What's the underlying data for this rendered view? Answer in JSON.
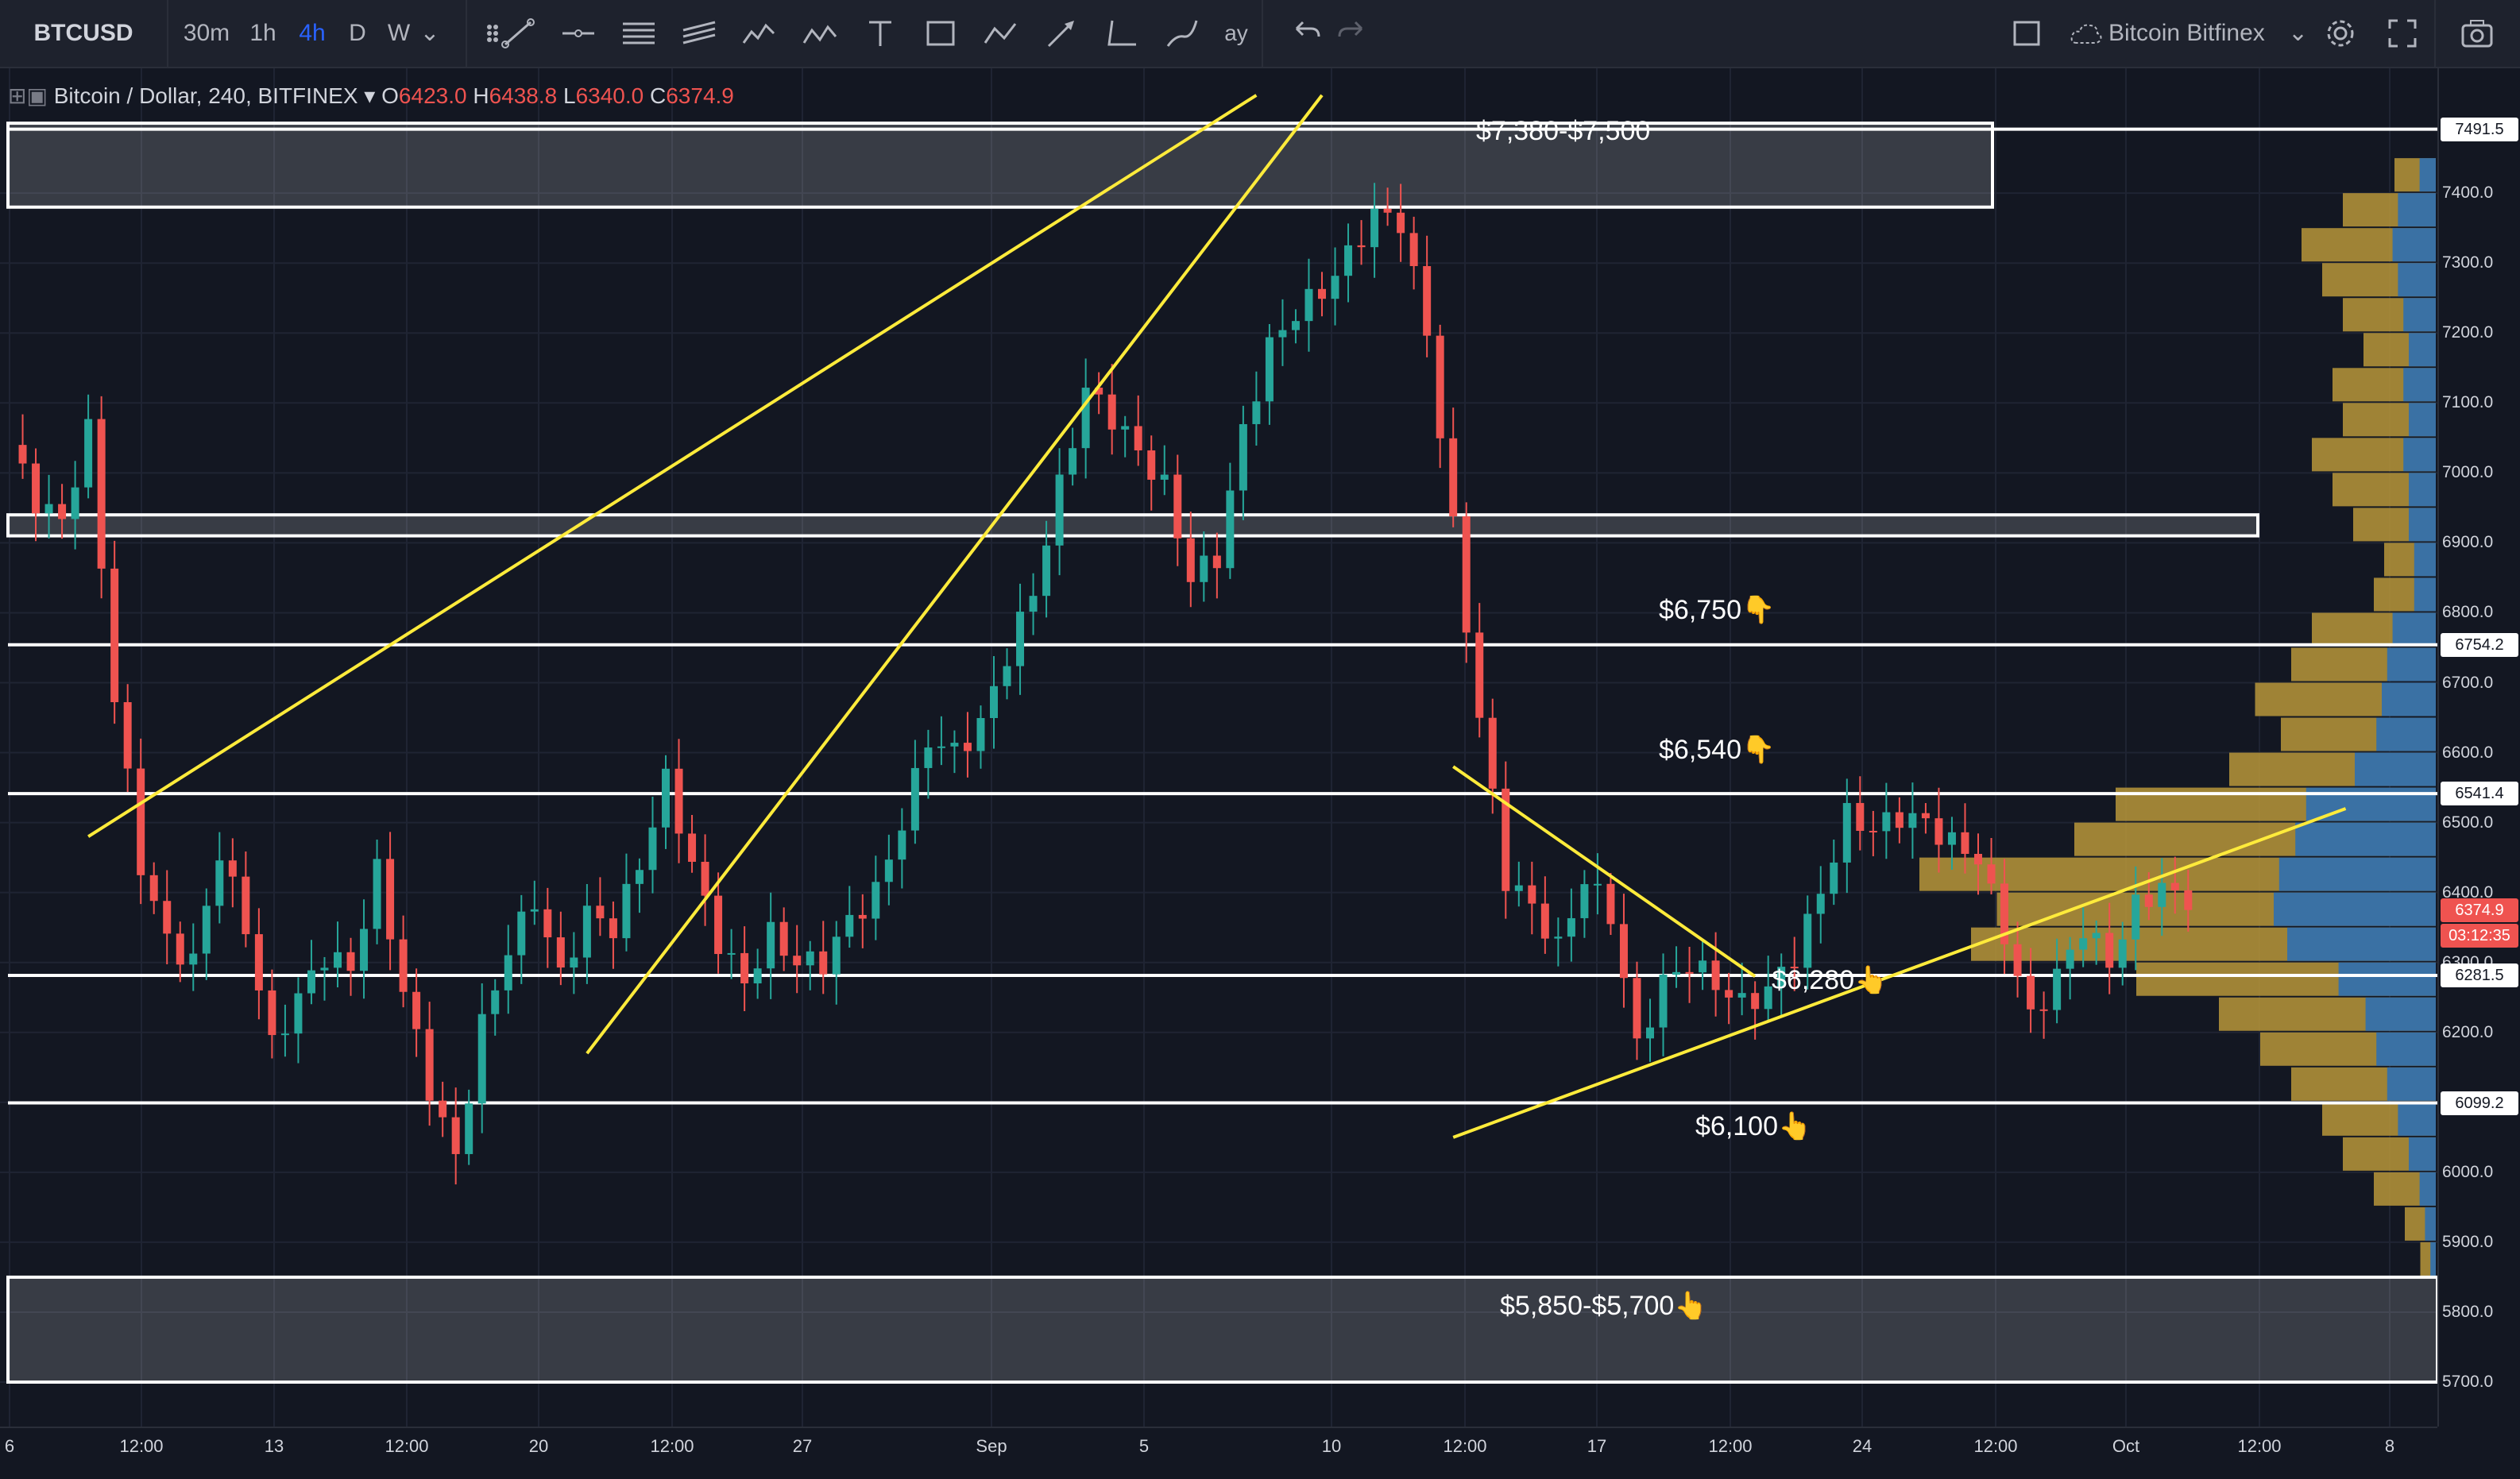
{
  "toolbar": {
    "symbol": "BTCUSD",
    "intervals": [
      "30m",
      "1h",
      "4h",
      "D",
      "W"
    ],
    "active_interval": "4h",
    "exchange": "Bitcoin Bitfinex",
    "partial_label": "ay",
    "icons": [
      "grid-handle-icon",
      "trend-line-icon",
      "horizontal-ray-icon",
      "parallel-channel-icon",
      "pitchfork-icon",
      "elliott-wave-icon",
      "abcde-pattern-icon",
      "text-icon",
      "rectangle-icon",
      "abc-pattern-icon",
      "arrow-icon",
      "angle-icon",
      "brush-icon",
      "undo-icon",
      "redo-icon",
      "square-icon",
      "cloud-icon",
      "chevron-down-icon",
      "gear-icon",
      "fullscreen-icon",
      "camera-icon"
    ]
  },
  "legend": {
    "title": "Bitcoin / Dollar, 240, BITFINEX",
    "o_label": "O",
    "o_value": "6423.0",
    "h_label": "H",
    "h_value": "6438.8",
    "l_label": "L",
    "l_value": "6340.0",
    "c_label": "C",
    "c_value": "6374.9"
  },
  "chart_data": {
    "type": "candlestick",
    "symbol": "Bitcoin / Dollar",
    "interval": "240",
    "exchange": "BITFINEX",
    "y_axis_ticks": [
      5700,
      5800,
      5900,
      6000,
      6100,
      6200,
      6300,
      6400,
      6500,
      6600,
      6700,
      6800,
      6900,
      7000,
      7100,
      7200,
      7300,
      7400
    ],
    "y_tick_labels": [
      "5700.0",
      "5800.0",
      "5900.0",
      "6000.0",
      "6100.0",
      "6200.0",
      "6300.0",
      "6400.0",
      "6500.0",
      "6600.0",
      "6700.0",
      "6800.0",
      "6900.0",
      "7000.0",
      "7100.0",
      "7200.0",
      "7300.0",
      "7400.0"
    ],
    "ylim": [
      5650,
      7540
    ],
    "x_tick_labels": [
      "6",
      "12:00",
      "13",
      "12:00",
      "20",
      "12:00",
      "27",
      "Sep",
      "5",
      "10",
      "12:00",
      "17",
      "12:00",
      "24",
      "12:00",
      "Oct",
      "12:00",
      "8"
    ],
    "grid": true,
    "last_price": "6374.9",
    "countdown": "03:12:35",
    "level_badges": [
      "7491.5",
      "6754.2",
      "6541.4",
      "6281.5",
      "6099.2"
    ],
    "close_path": [
      [
        0,
        7040
      ],
      [
        2,
        6960
      ],
      [
        4,
        6930
      ],
      [
        6,
        7060
      ],
      [
        8,
        6680
      ],
      [
        10,
        6440
      ],
      [
        12,
        6330
      ],
      [
        14,
        6300
      ],
      [
        16,
        6460
      ],
      [
        18,
        6350
      ],
      [
        20,
        6180
      ],
      [
        22,
        6250
      ],
      [
        24,
        6310
      ],
      [
        26,
        6290
      ],
      [
        28,
        6430
      ],
      [
        30,
        6260
      ],
      [
        32,
        6120
      ],
      [
        34,
        6020
      ],
      [
        36,
        6210
      ],
      [
        38,
        6320
      ],
      [
        40,
        6390
      ],
      [
        42,
        6280
      ],
      [
        44,
        6370
      ],
      [
        46,
        6350
      ],
      [
        48,
        6440
      ],
      [
        50,
        6560
      ],
      [
        52,
        6440
      ],
      [
        54,
        6330
      ],
      [
        56,
        6270
      ],
      [
        58,
        6340
      ],
      [
        60,
        6300
      ],
      [
        62,
        6300
      ],
      [
        64,
        6360
      ],
      [
        66,
        6400
      ],
      [
        68,
        6500
      ],
      [
        70,
        6620
      ],
      [
        72,
        6600
      ],
      [
        74,
        6640
      ],
      [
        76,
        6740
      ],
      [
        78,
        6830
      ],
      [
        80,
        6980
      ],
      [
        82,
        7120
      ],
      [
        84,
        7080
      ],
      [
        86,
        7030
      ],
      [
        88,
        6980
      ],
      [
        90,
        6850
      ],
      [
        92,
        6880
      ],
      [
        94,
        7060
      ],
      [
        96,
        7180
      ],
      [
        98,
        7230
      ],
      [
        100,
        7260
      ],
      [
        102,
        7310
      ],
      [
        104,
        7370
      ],
      [
        106,
        7360
      ],
      [
        108,
        7200
      ],
      [
        110,
        6920
      ],
      [
        112,
        6650
      ],
      [
        114,
        6420
      ],
      [
        116,
        6380
      ],
      [
        118,
        6320
      ],
      [
        120,
        6420
      ],
      [
        122,
        6370
      ],
      [
        124,
        6180
      ],
      [
        126,
        6270
      ],
      [
        128,
        6300
      ],
      [
        130,
        6270
      ],
      [
        132,
        6240
      ],
      [
        134,
        6260
      ],
      [
        136,
        6310
      ],
      [
        138,
        6400
      ],
      [
        140,
        6510
      ],
      [
        142,
        6490
      ],
      [
        144,
        6510
      ],
      [
        146,
        6500
      ],
      [
        148,
        6470
      ],
      [
        150,
        6450
      ],
      [
        152,
        6340
      ],
      [
        154,
        6220
      ],
      [
        156,
        6280
      ],
      [
        158,
        6350
      ],
      [
        160,
        6300
      ],
      [
        162,
        6380
      ],
      [
        164,
        6410
      ],
      [
        166,
        6375
      ]
    ],
    "volume_profile_bins_low_to_high_usd": [
      5850,
      5900,
      5950,
      6000,
      6050,
      6100,
      6150,
      6200,
      6250,
      6300,
      6350,
      6400,
      6450,
      6500,
      6550,
      6600,
      6650,
      6700,
      6750,
      6800,
      6850,
      6900,
      6950,
      7000,
      7050,
      7100,
      7150,
      7200,
      7250,
      7300,
      7350,
      7400
    ],
    "volume_profile_gold": [
      3,
      6,
      12,
      18,
      22,
      28,
      34,
      42,
      58,
      90,
      85,
      100,
      70,
      62,
      40,
      30,
      35,
      28,
      24,
      12,
      10,
      16,
      20,
      24,
      18,
      20,
      14,
      18,
      22,
      26,
      18,
      8
    ],
    "volume_profile_blue": [
      2,
      4,
      6,
      10,
      14,
      18,
      22,
      26,
      36,
      55,
      60,
      58,
      52,
      48,
      30,
      22,
      20,
      18,
      16,
      8,
      8,
      10,
      10,
      12,
      10,
      12,
      10,
      12,
      14,
      16,
      14,
      6
    ],
    "zones": [
      {
        "low": 7380,
        "high": 7500,
        "label": "$7,380-$7,500"
      },
      {
        "low": 6910,
        "high": 6940,
        "label": ""
      },
      {
        "low": 5700,
        "high": 5850,
        "label": "$5,850-$5,700👆"
      }
    ],
    "levels": [
      {
        "price": 7491.5
      },
      {
        "price": 6754.2,
        "label": "$6,750👇"
      },
      {
        "price": 6541.4,
        "label": "$6,540👇"
      },
      {
        "price": 6281.5,
        "label": "$6,280👆"
      },
      {
        "price": 6099.2,
        "label": "$6,100👆"
      }
    ],
    "trendlines_price": [
      {
        "from": [
          6,
          6480
        ],
        "to": [
          95,
          7540
        ]
      },
      {
        "from": [
          44,
          6170
        ],
        "to": [
          100,
          7540
        ]
      },
      {
        "from": [
          110,
          6580
        ],
        "to": [
          133,
          6280
        ]
      },
      {
        "from": [
          110,
          6050
        ],
        "to": [
          178,
          6520
        ]
      }
    ]
  },
  "annotations": {
    "zone_top": "$7,380-$7,500",
    "lvl_6750": "$6,750👇",
    "lvl_6540": "$6,540👇",
    "lvl_6280": "$6,280👆",
    "lvl_6100": "$6,100👆",
    "zone_bottom": "$5,850-$5,700👆"
  },
  "colors": {
    "up": "#26a69a",
    "down": "#ef5350",
    "trendline": "#ffeb3b",
    "level": "#ffffff",
    "vp_gold": "#b8963a",
    "vp_blue": "#2f6fb0",
    "accent": "#2962ff"
  }
}
